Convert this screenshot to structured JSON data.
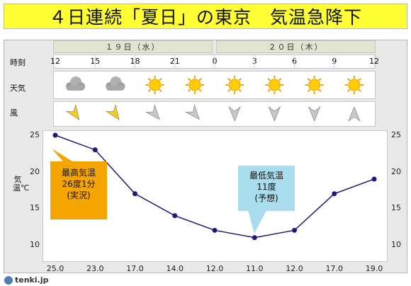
{
  "title": "４日連続「夏日」の東京　気温急降下",
  "days": [
    {
      "label": "１９日（水）"
    },
    {
      "label": "２０日（木）"
    }
  ],
  "row_labels": {
    "time": "時刻",
    "weather": "天気",
    "wind": "風"
  },
  "times": [
    "12",
    "15",
    "18",
    "21",
    "0",
    "3",
    "6",
    "9",
    "12"
  ],
  "weather_icons": [
    "cloudy-icon",
    "cloudy-icon",
    "sunny-icon",
    "sunny-icon",
    "sunny-icon",
    "sunny-icon",
    "sunny-icon",
    "sunny-icon"
  ],
  "wind_arrows": [
    {
      "icon": "wind-arrow-icon",
      "color": "#f2cf1f"
    },
    {
      "icon": "wind-arrow-icon",
      "color": "#f2cf1f"
    },
    {
      "icon": "wind-arrow-icon",
      "color": "#c8c8c8"
    },
    {
      "icon": "wind-arrow-icon",
      "color": "#c8c8c8"
    },
    {
      "icon": "wind-arrow-icon",
      "color": "#c8c8c8"
    },
    {
      "icon": "wind-arrow-icon",
      "color": "#c8c8c8"
    },
    {
      "icon": "wind-arrow-icon",
      "color": "#c8c8c8"
    },
    {
      "icon": "wind-arrow-icon",
      "color": "#c8c8c8"
    }
  ],
  "chart_data": {
    "type": "line",
    "ylabel": "気温℃",
    "ylim": [
      10,
      25
    ],
    "yticks": [
      "25",
      "20",
      "15",
      "10"
    ],
    "x": [
      "12",
      "15",
      "18",
      "21",
      "0",
      "3",
      "6",
      "9",
      "12"
    ],
    "values": [
      25.0,
      23.0,
      17.0,
      14.0,
      12.0,
      11.0,
      12.0,
      17.0,
      19.0
    ],
    "value_labels": [
      "25.0",
      "23.0",
      "17.0",
      "14.0",
      "12.0",
      "11.0",
      "12.0",
      "17.0",
      "19.0"
    ],
    "line_color": "#1c1c78",
    "grid": false
  },
  "callouts": {
    "max": {
      "lines": [
        "最高気温",
        "26度1分",
        "(実況)"
      ],
      "color": "#f5a500"
    },
    "min": {
      "lines": [
        "最低気温",
        "11度",
        "(予想)"
      ],
      "color": "#a9dcec"
    }
  },
  "footer": {
    "logo_text": "tenki.jp"
  },
  "colors": {
    "title_bg": "#ffff33",
    "panel_bg": "#e9e9e9"
  }
}
